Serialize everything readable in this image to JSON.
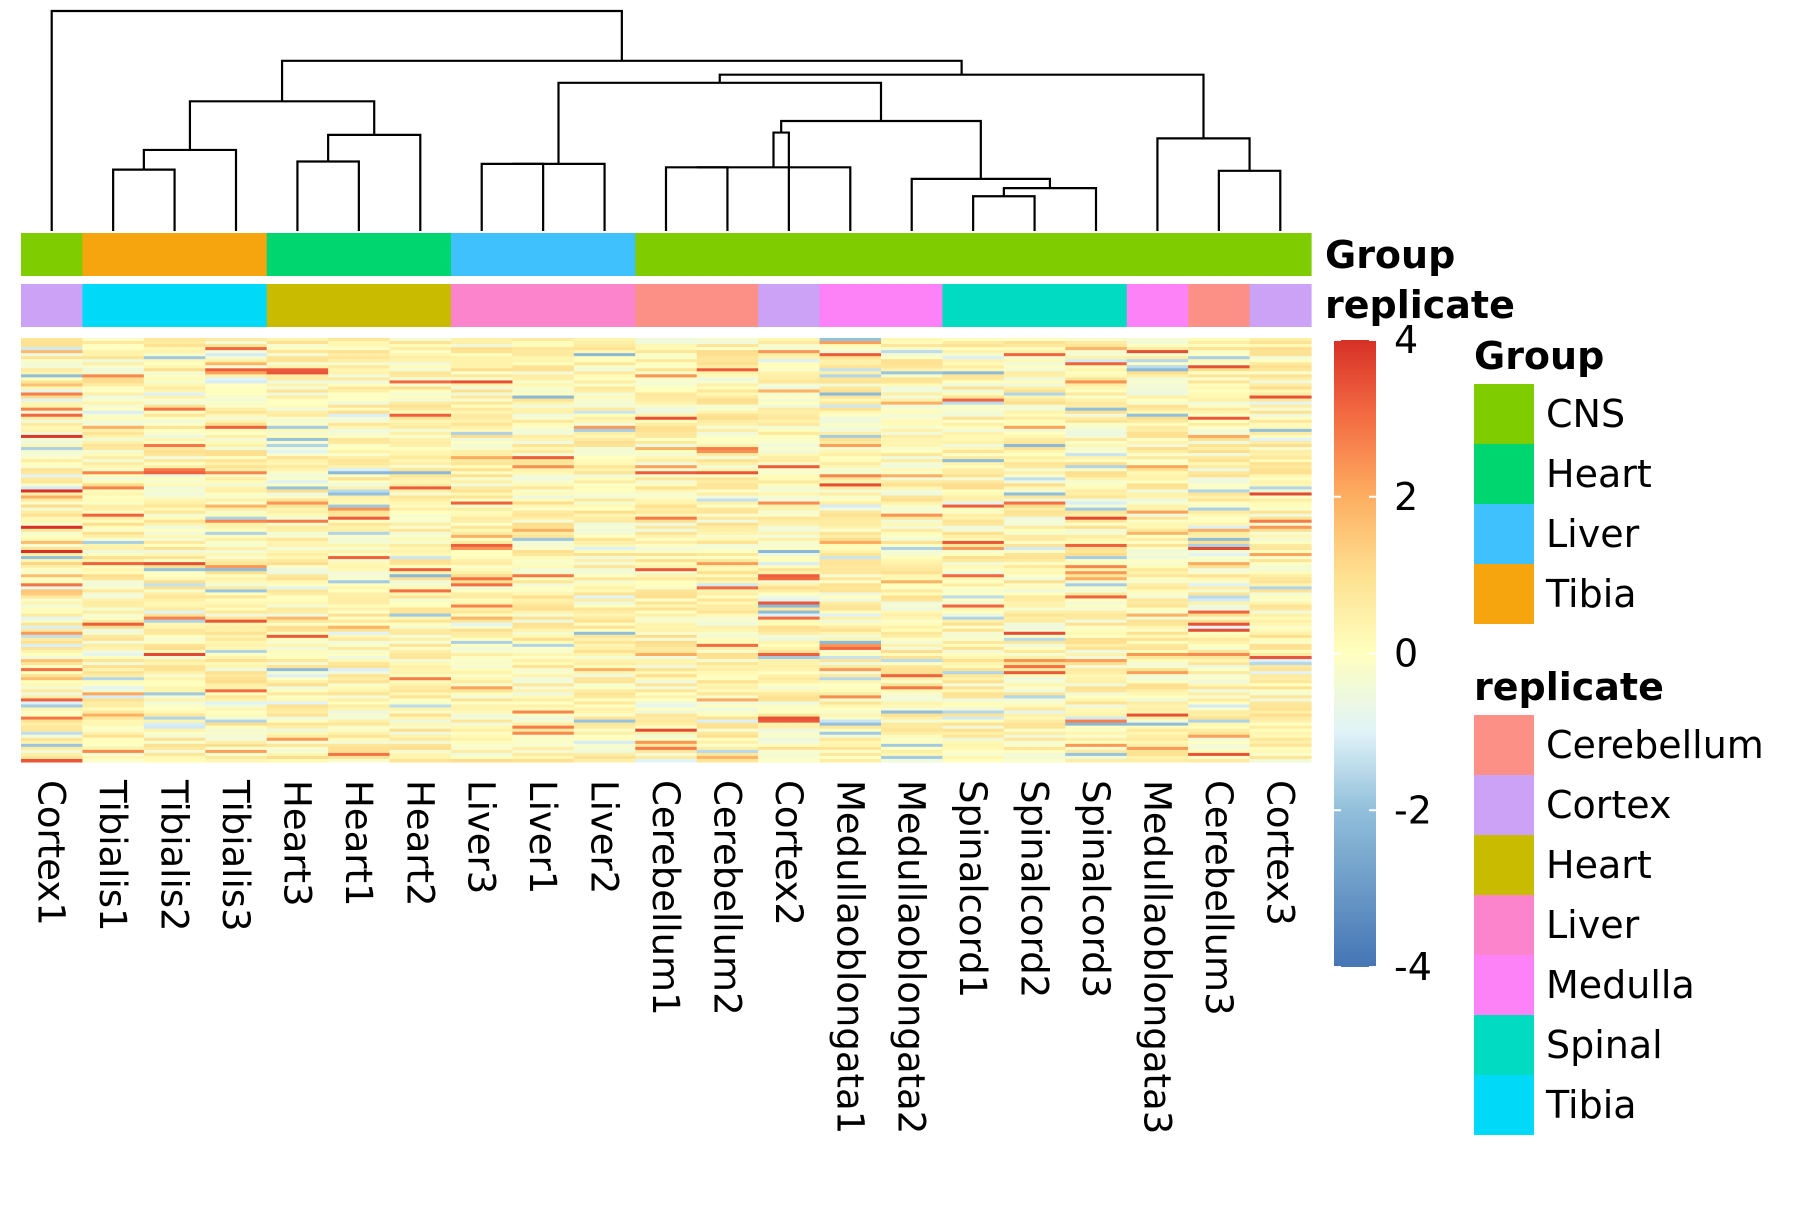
{
  "chart_data": {
    "type": "heatmap",
    "title": "",
    "xlabel": "",
    "ylabel": "",
    "color_scale": {
      "min": -4,
      "max": 4,
      "ticks": [
        "4",
        "2",
        "0",
        "-2",
        "-4"
      ],
      "tick_values": [
        4,
        2,
        0,
        -2,
        -4
      ],
      "stops": [
        {
          "value": -4,
          "color": "#4575b4"
        },
        {
          "value": -2,
          "color": "#91bfdb"
        },
        {
          "value": -1,
          "color": "#e0f3f8"
        },
        {
          "value": 0,
          "color": "#ffffbf"
        },
        {
          "value": 1,
          "color": "#fee090"
        },
        {
          "value": 2,
          "color": "#fdae61"
        },
        {
          "value": 3,
          "color": "#f46d43"
        },
        {
          "value": 4,
          "color": "#d73027"
        }
      ]
    },
    "samples": [
      "Cortex1",
      "Tibialis1",
      "Tibialis2",
      "Tibialis3",
      "Heart3",
      "Heart1",
      "Heart2",
      "Liver3",
      "Liver1",
      "Liver2",
      "Cerebellum1",
      "Cerebellum2",
      "Cortex2",
      "Medulla­oblongata1",
      "Medullaoblongata2",
      "Spinalcord1",
      "Spinalcord2",
      "Spinalcord3",
      "Medullaoblongata3",
      "Cerebellum3",
      "Cortex3"
    ],
    "column_annotations": {
      "row_labels": [
        "Group",
        "replicate"
      ],
      "Group": [
        "CNS",
        "Tibia",
        "Tibia",
        "Tibia",
        "Heart",
        "Heart",
        "Heart",
        "Liver",
        "Liver",
        "Liver",
        "CNS",
        "CNS",
        "CNS",
        "CNS",
        "CNS",
        "CNS",
        "CNS",
        "CNS",
        "CNS",
        "CNS",
        "CNS"
      ],
      "replicate": [
        "Cortex",
        "Tibia",
        "Tibia",
        "Tibia",
        "Heart",
        "Heart",
        "Heart",
        "Liver",
        "Liver",
        "Liver",
        "Cerebellum",
        "Cerebellum",
        "Cortex",
        "Medulla",
        "Medulla",
        "Spinal",
        "Spinal",
        "Spinal",
        "Medulla",
        "Cerebellum",
        "Cortex"
      ]
    },
    "legends": {
      "group": {
        "title": "Group",
        "entries": [
          {
            "label": "CNS",
            "color": "#7fcc00"
          },
          {
            "label": "Heart",
            "color": "#00d66f"
          },
          {
            "label": "Liver",
            "color": "#3ec1fd"
          },
          {
            "label": "Tibia",
            "color": "#f7a50f"
          }
        ]
      },
      "replicate": {
        "title": "replicate",
        "entries": [
          {
            "label": "Cerebellum",
            "color": "#fd9086"
          },
          {
            "label": "Cortex",
            "color": "#cca2f7"
          },
          {
            "label": "Heart",
            "color": "#c9bb00"
          },
          {
            "label": "Liver",
            "color": "#fb84cc"
          },
          {
            "label": "Medulla",
            "color": "#fd81f7"
          },
          {
            "label": "Spinal",
            "color": "#00dbc1"
          },
          {
            "label": "Tibia",
            "color": "#00d9f7"
          }
        ]
      }
    },
    "dendrogram": {
      "merges": [
        [
          -2,
          -3
        ],
        [
          -5,
          -6
        ],
        [
          -8,
          -9
        ],
        [
          -11,
          -12
        ],
        [
          -16,
          -17
        ],
        [
          -20,
          -21
        ],
        [
          -14,
          4
        ],
        [
          -4,
          1
        ],
        [
          -7,
          2
        ],
        [
          -10,
          3
        ],
        [
          -18,
          5
        ],
        [
          -15,
          11
        ],
        [
          -13,
          7
        ],
        [
          -19,
          6
        ],
        [
          13,
          12
        ],
        [
          8,
          9
        ],
        [
          10,
          15
        ],
        [
          14,
          17
        ],
        [
          16,
          18
        ],
        [
          -1,
          19
        ]
      ],
      "heights": [
        53,
        60,
        58,
        55,
        30,
        52,
        55,
        70,
        83,
        58,
        37,
        45,
        85,
        80,
        95,
        112,
        128,
        135,
        147,
        190
      ]
    },
    "row_count": 140,
    "data_note": "Expression matrix is dense (z-scored rows); values mostly in range -1 to 2 with sparse extremes near 4 and -2."
  }
}
